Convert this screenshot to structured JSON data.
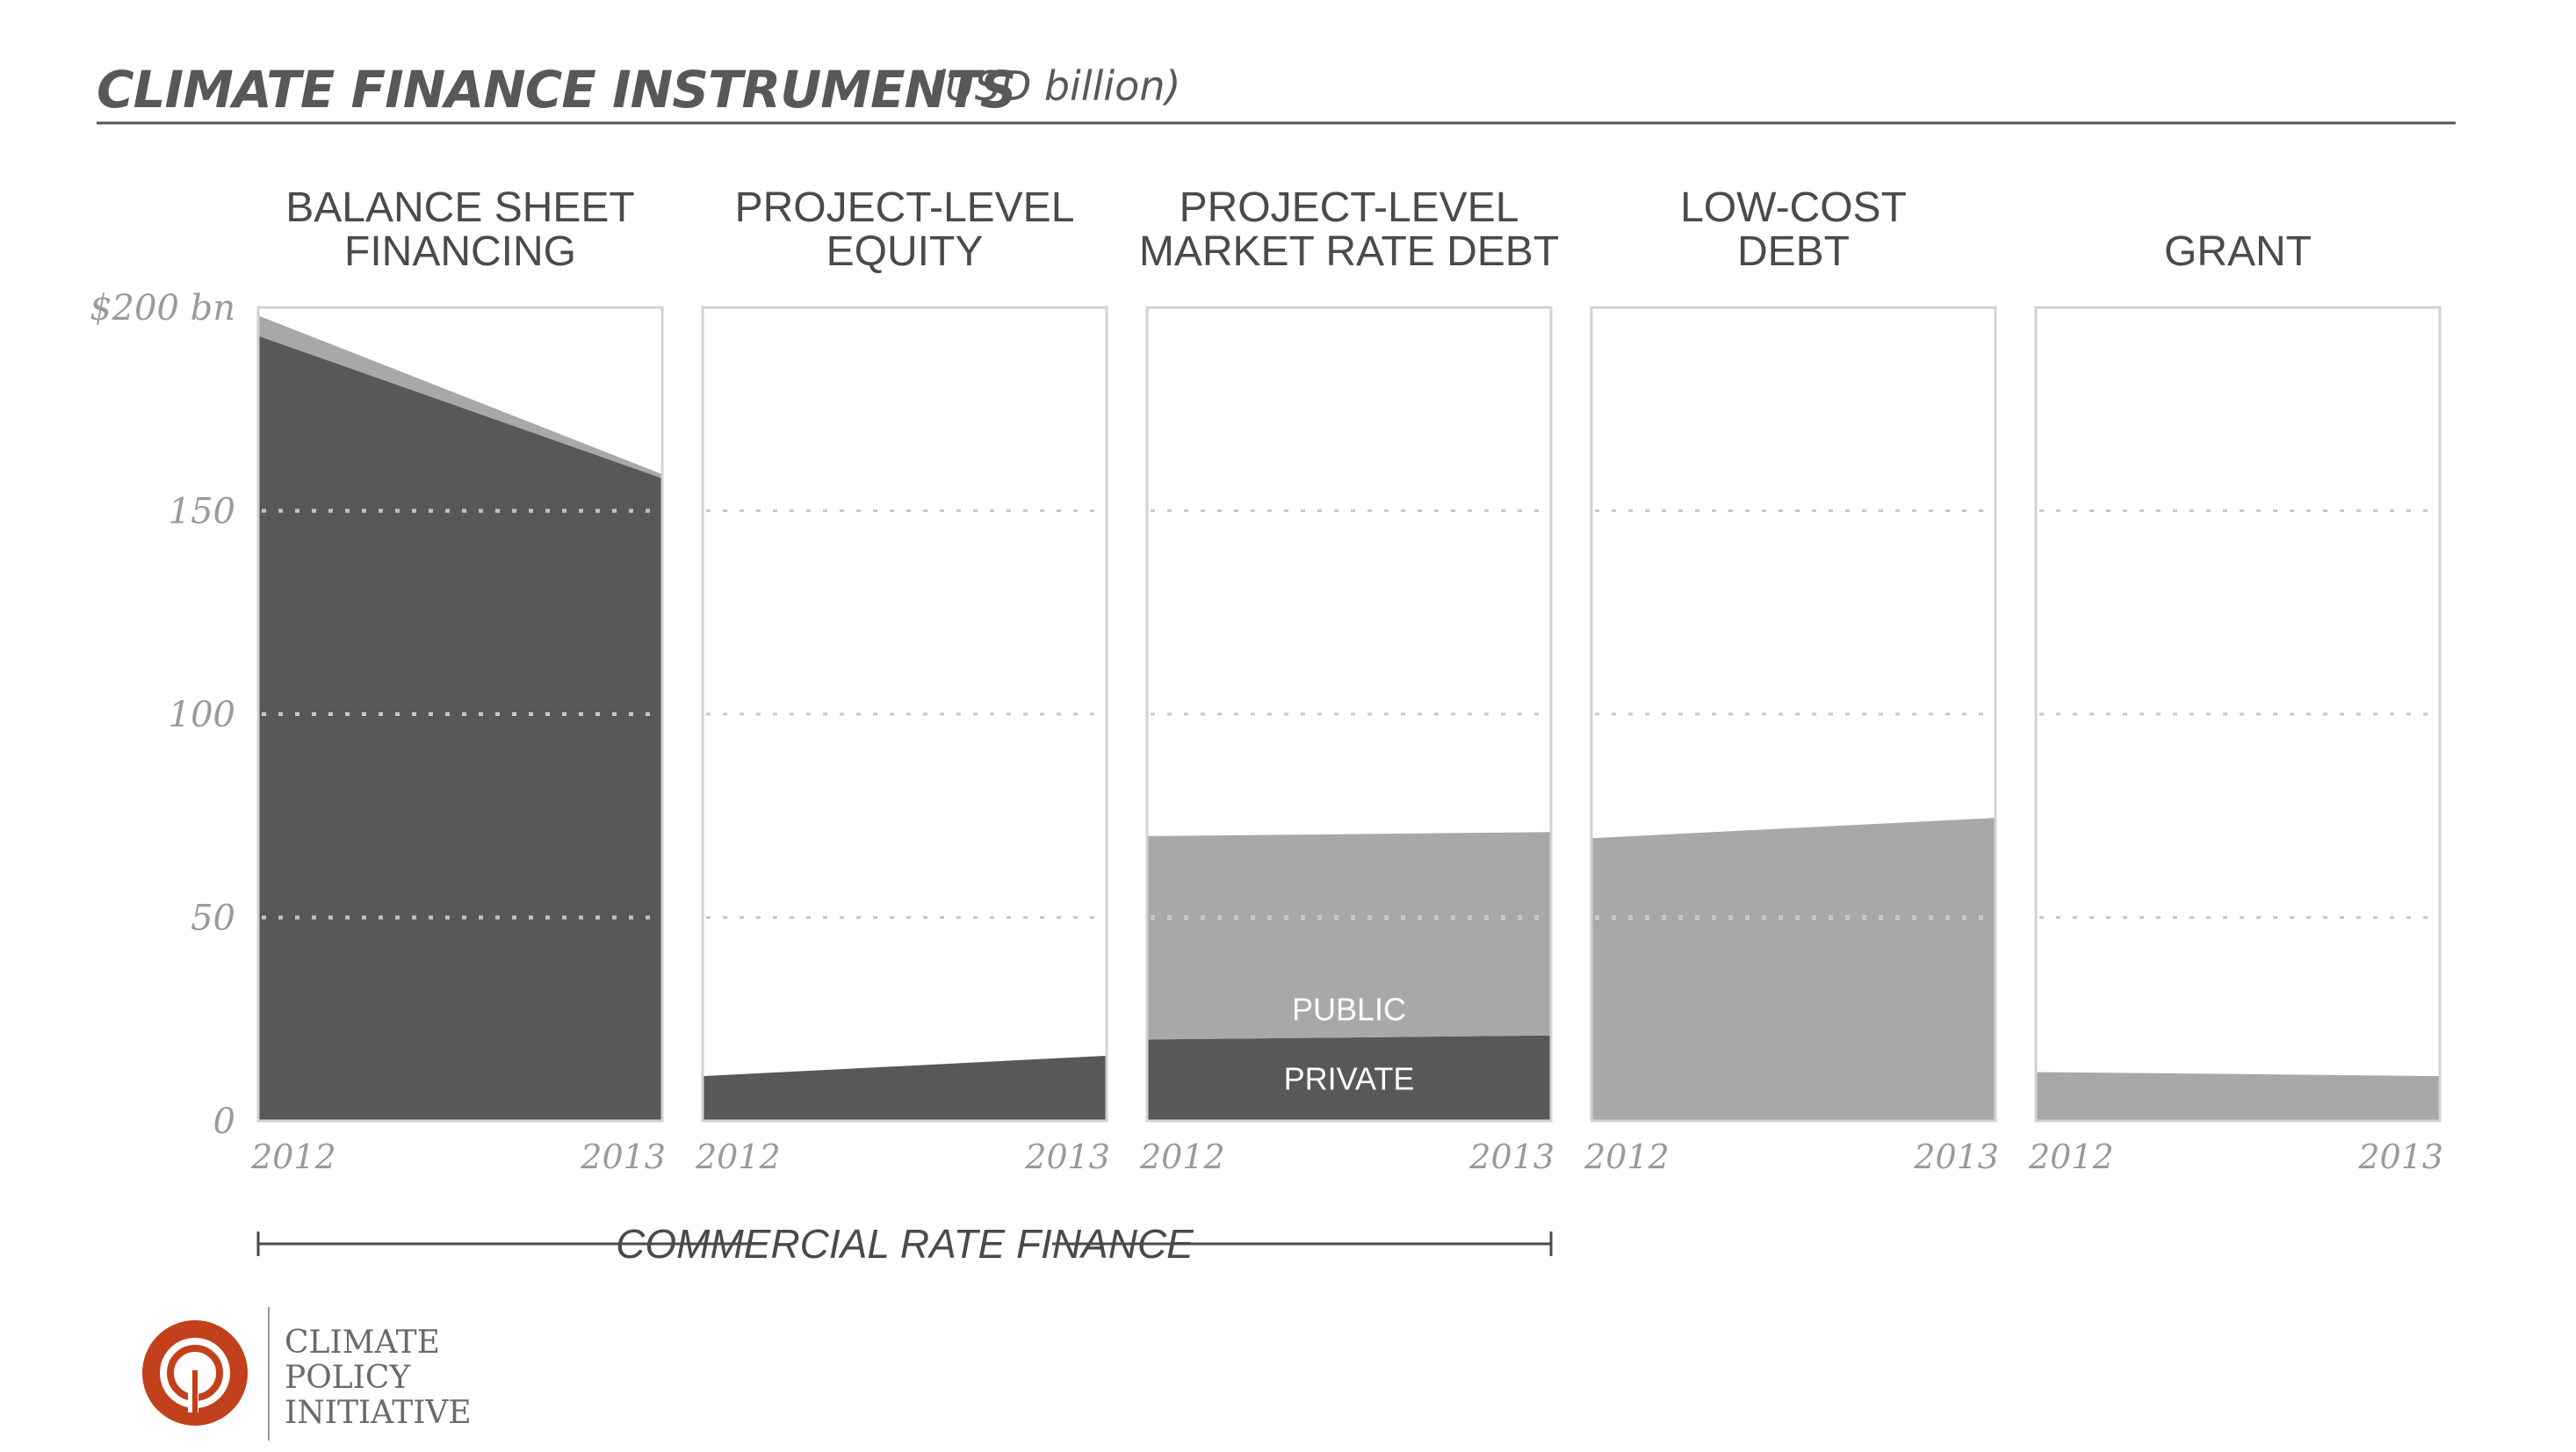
{
  "header": {
    "title": "CLIMATE FINANCE INSTRUMENTS",
    "subtitle": "(USD billion)"
  },
  "chart_data": {
    "type": "area",
    "title": "CLIMATE FINANCE INSTRUMENTS",
    "subtitle": "(USD billion)",
    "x": [
      "2012",
      "2013"
    ],
    "ylim": [
      0,
      200
    ],
    "y_ticks": [
      {
        "value": 0,
        "label": "0"
      },
      {
        "value": 50,
        "label": "50"
      },
      {
        "value": 100,
        "label": "100"
      },
      {
        "value": 150,
        "label": "150"
      },
      {
        "value": 200,
        "label": "$200 bn"
      }
    ],
    "grid": true,
    "colors": {
      "dark": "#58585a",
      "light": "#a7a8aa",
      "frame": "#d2d2d4",
      "grid": "#c8c8ca"
    },
    "panels": [
      {
        "title": [
          "BALANCE SHEET",
          "FINANCING"
        ],
        "x_labels": [
          "2012",
          "2013"
        ],
        "series": [
          {
            "name": "",
            "color": "dark",
            "values": [
              193,
              158
            ]
          },
          {
            "name": "",
            "color": "light",
            "values": [
              5,
              1
            ]
          }
        ]
      },
      {
        "title": [
          "PROJECT-LEVEL",
          "EQUITY"
        ],
        "x_labels": [
          "2012",
          "2013"
        ],
        "series": [
          {
            "name": "",
            "color": "dark",
            "values": [
              11,
              16
            ]
          }
        ]
      },
      {
        "title": [
          "PROJECT-LEVEL",
          "MARKET RATE DEBT"
        ],
        "x_labels": [
          "2012",
          "2013"
        ],
        "series": [
          {
            "name": "PRIVATE",
            "color": "dark",
            "values": [
              20,
              21
            ]
          },
          {
            "name": "PUBLIC",
            "color": "light",
            "values": [
              50,
              50
            ]
          }
        ]
      },
      {
        "title": [
          "LOW-COST",
          "DEBT"
        ],
        "x_labels": [
          "2012",
          "2013"
        ],
        "series": [
          {
            "name": "",
            "color": "light",
            "values": [
              69.5,
              74.5
            ]
          }
        ]
      },
      {
        "title": [
          "",
          "GRANT"
        ],
        "x_labels": [
          "2012",
          "2013"
        ],
        "series": [
          {
            "name": "",
            "color": "light",
            "values": [
              12,
              11
            ]
          }
        ]
      }
    ],
    "bracket": {
      "label": "COMMERCIAL RATE FINANCE",
      "from_panel": 0,
      "to_panel": 2
    }
  },
  "logo": {
    "lines": [
      "CLIMATE",
      "POLICY",
      "INITIATIVE"
    ],
    "ring_color": "#c2401c"
  }
}
